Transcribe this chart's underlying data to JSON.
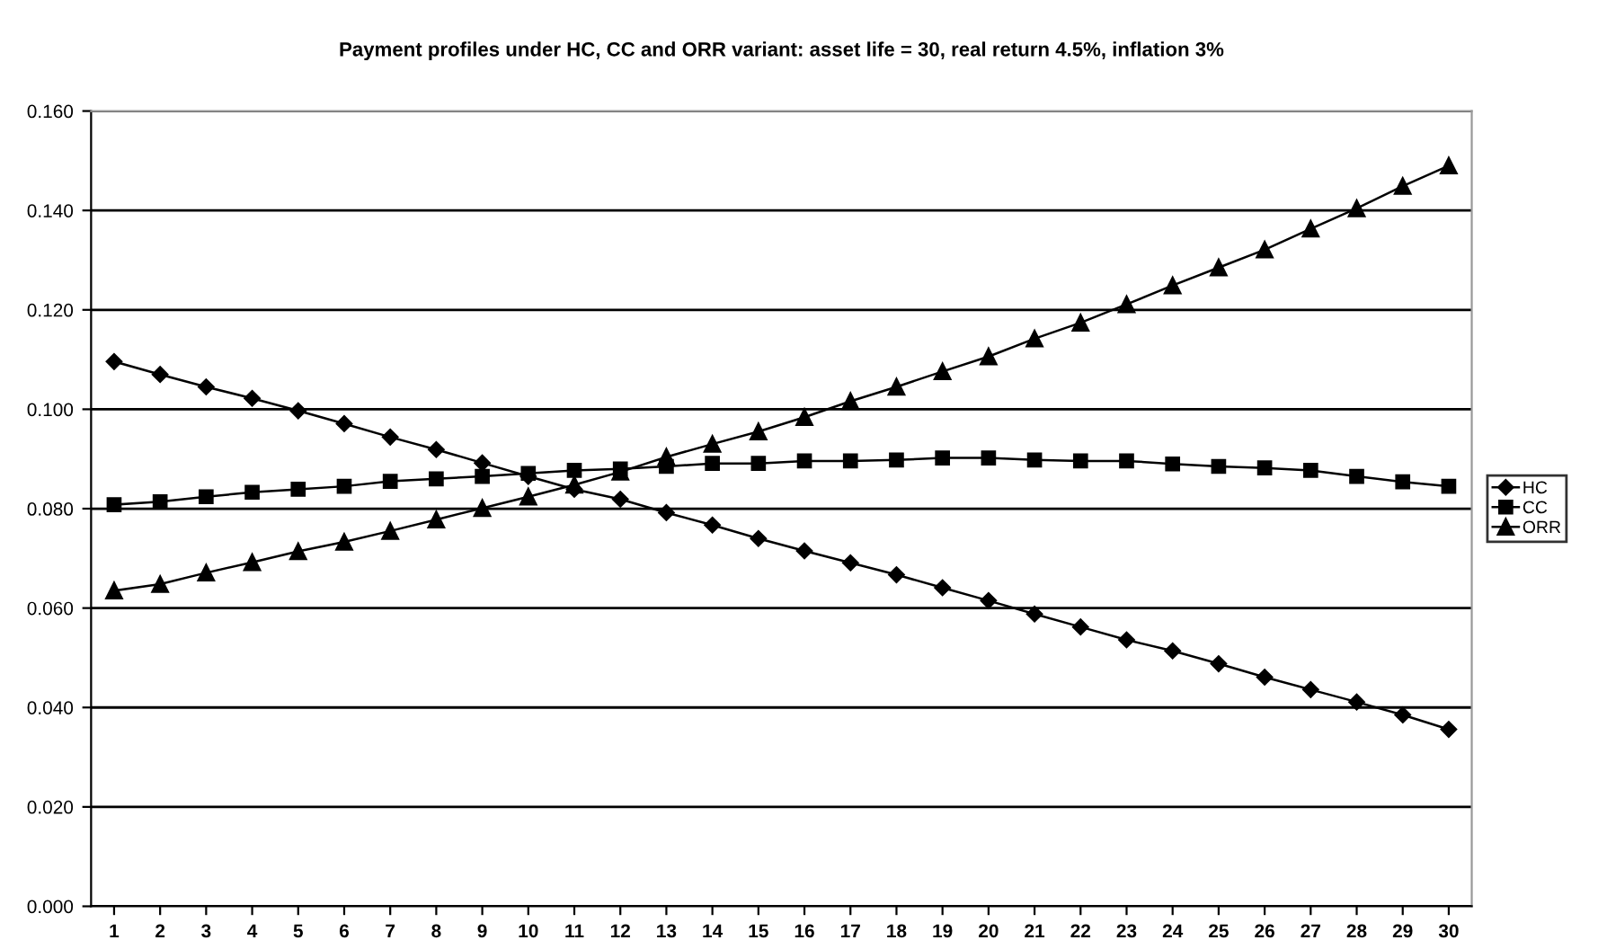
{
  "chart_data": {
    "type": "line",
    "title": "Payment profiles under HC, CC and ORR variant: asset life = 30, real return 4.5%, inflation 3%",
    "categories": [
      "1",
      "2",
      "3",
      "4",
      "5",
      "6",
      "7",
      "8",
      "9",
      "10",
      "11",
      "12",
      "13",
      "14",
      "15",
      "16",
      "17",
      "18",
      "19",
      "20",
      "21",
      "22",
      "23",
      "24",
      "25",
      "26",
      "27",
      "28",
      "29",
      "30"
    ],
    "series": [
      {
        "name": "HC",
        "color": "#000000",
        "marker": "diamond",
        "values": [
          0.1096,
          0.107,
          0.1045,
          0.1022,
          0.0997,
          0.0971,
          0.0944,
          0.0919,
          0.0892,
          0.0865,
          0.0839,
          0.0819,
          0.0792,
          0.0767,
          0.074,
          0.0715,
          0.0691,
          0.0667,
          0.0641,
          0.0615,
          0.0588,
          0.0562,
          0.0536,
          0.0514,
          0.0488,
          0.0461,
          0.0436,
          0.0411,
          0.0385,
          0.0356
        ]
      },
      {
        "name": "CC",
        "color": "#000000",
        "marker": "square",
        "values": [
          0.0808,
          0.0814,
          0.0824,
          0.0833,
          0.0839,
          0.0845,
          0.0855,
          0.086,
          0.0865,
          0.0871,
          0.0877,
          0.088,
          0.0885,
          0.0891,
          0.0891,
          0.0896,
          0.0896,
          0.0898,
          0.0902,
          0.0902,
          0.0898,
          0.0896,
          0.0896,
          0.089,
          0.0885,
          0.0882,
          0.0877,
          0.0865,
          0.0854,
          0.0845
        ]
      },
      {
        "name": "ORR",
        "color": "#000000",
        "marker": "triangle",
        "values": [
          0.0635,
          0.0648,
          0.0671,
          0.0692,
          0.0714,
          0.0733,
          0.0755,
          0.0778,
          0.0801,
          0.0824,
          0.0848,
          0.0874,
          0.0904,
          0.093,
          0.0955,
          0.0984,
          0.1016,
          0.1045,
          0.1076,
          0.1106,
          0.1142,
          0.1174,
          0.1211,
          0.1249,
          0.1285,
          0.1321,
          0.1363,
          0.1404,
          0.1449,
          0.149
        ]
      }
    ],
    "ylim": [
      0,
      0.16
    ],
    "yticks": [
      {
        "value": 0,
        "label": "0.000"
      },
      {
        "value": 0.02,
        "label": "0.020"
      },
      {
        "value": 0.04,
        "label": "0.040"
      },
      {
        "value": 0.06,
        "label": "0.060"
      },
      {
        "value": 0.08,
        "label": "0.080"
      },
      {
        "value": 0.1,
        "label": "0.100"
      },
      {
        "value": 0.12,
        "label": "0.120"
      },
      {
        "value": 0.14,
        "label": "0.140"
      },
      {
        "value": 0.16,
        "label": "0.160"
      }
    ],
    "grid": "y",
    "legend": "right",
    "line_style": "solid"
  }
}
